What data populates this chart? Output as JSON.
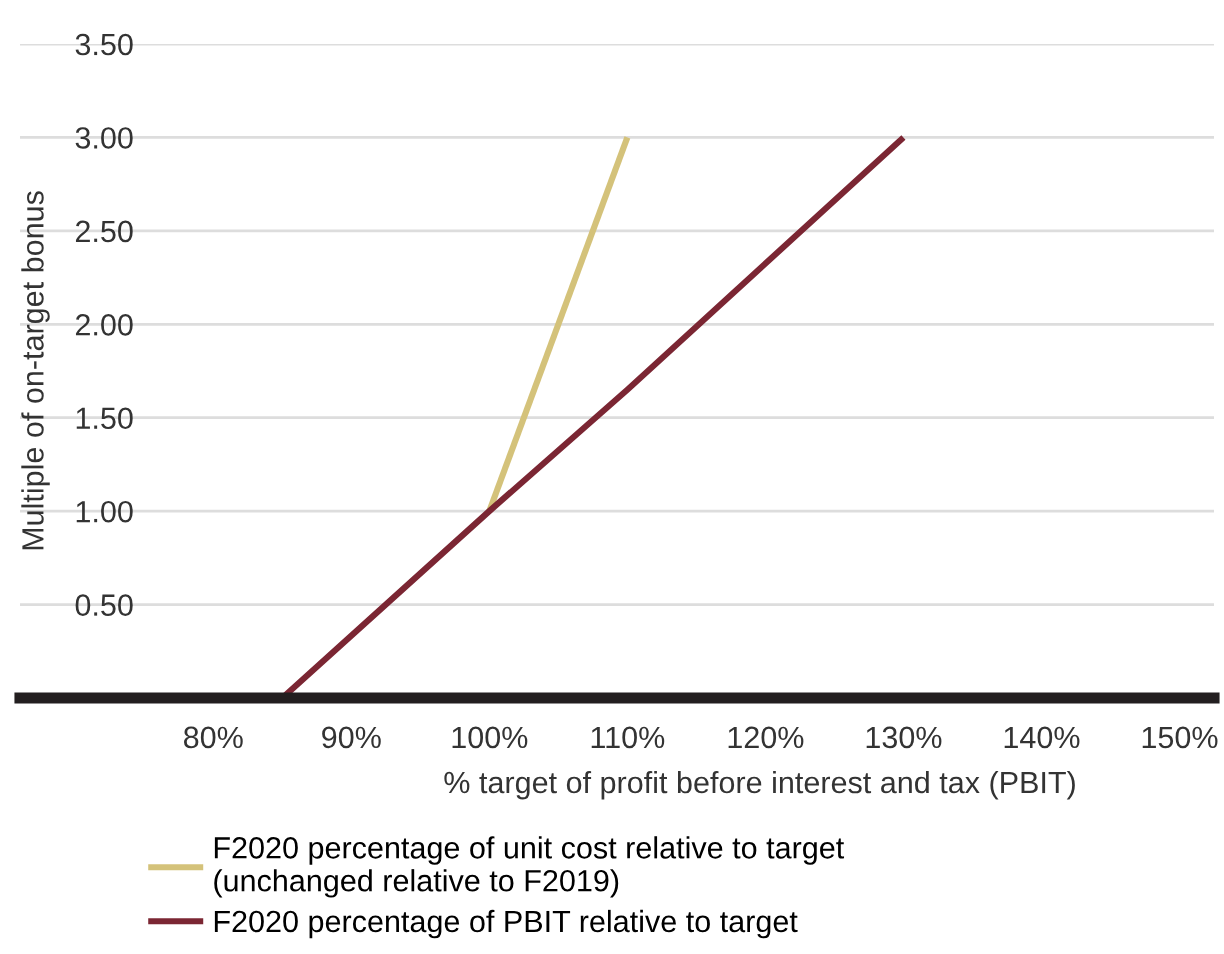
{
  "chart_data": {
    "type": "line",
    "xlabel": "% target of profit before interest and tax (PBIT)",
    "ylabel": "Multiple of on-target bonus",
    "series": [
      {
        "name": "F2020 percentage of unit cost relative to target\n(unchanged relative to F2019)",
        "color": "#d4c27a",
        "x": [
          100,
          110
        ],
        "values": [
          1.0,
          3.0
        ]
      },
      {
        "name": "F2020 percentage of PBIT relative to target",
        "color": "#7b2633",
        "x": [
          85,
          100,
          110,
          130
        ],
        "values": [
          0.0,
          1.0,
          1.65,
          3.0
        ]
      }
    ],
    "xlim": [
      66,
      152.5
    ],
    "xticks": [
      {
        "value": 80,
        "label": "80%"
      },
      {
        "value": 90,
        "label": "90%"
      },
      {
        "value": 100,
        "label": "100%"
      },
      {
        "value": 110,
        "label": "110%"
      },
      {
        "value": 120,
        "label": "120%"
      },
      {
        "value": 130,
        "label": "130%"
      },
      {
        "value": 140,
        "label": "140%"
      },
      {
        "value": 150,
        "label": "150%"
      }
    ],
    "ylim": [
      0,
      3.5
    ],
    "yticks": [
      {
        "value": 0,
        "label": null
      },
      {
        "value": 0.5,
        "label": "0.50"
      },
      {
        "value": 1.0,
        "label": "1.00"
      },
      {
        "value": 1.5,
        "label": "1.50"
      },
      {
        "value": 2.0,
        "label": "2.00"
      },
      {
        "value": 2.5,
        "label": "2.50"
      },
      {
        "value": 3.0,
        "label": "3.00"
      },
      {
        "value": 3.5,
        "label": "3.50"
      }
    ],
    "grid": "y",
    "legend": "bottom",
    "marker": "none",
    "line_style": "solid"
  }
}
